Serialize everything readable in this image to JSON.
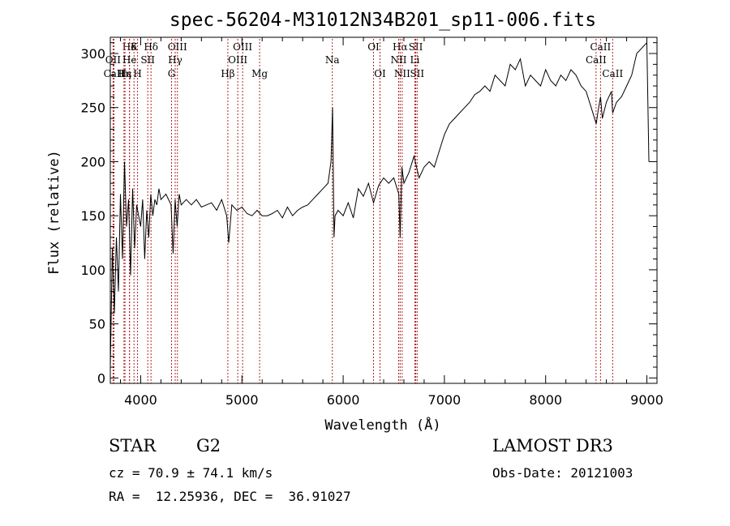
{
  "chart_data": {
    "type": "line",
    "title": "spec-56204-M31012N34B201_sp11-006.fits",
    "xlabel": "Wavelength (Å)",
    "ylabel": "Flux (relative)",
    "xlim": [
      3700,
      9100
    ],
    "ylim": [
      -5,
      315
    ],
    "xticks": [
      4000,
      5000,
      6000,
      7000,
      8000,
      9000
    ],
    "yticks": [
      0,
      50,
      100,
      150,
      200,
      250,
      300
    ],
    "grid": false,
    "spectral_lines": [
      {
        "label": "Hδ",
        "x": 3889,
        "row": 1
      },
      {
        "label": "OII",
        "x": 3727,
        "row": 2
      },
      {
        "label": "CaII",
        "x": 3736,
        "row": 3
      },
      {
        "label": "Hε",
        "x": 3845,
        "row": 3
      },
      {
        "label": "Hη",
        "x": 3835,
        "row": 3
      },
      {
        "label": "K",
        "x": 3934,
        "row": 1
      },
      {
        "label": "He",
        "x": 3890,
        "row": 2
      },
      {
        "label": "H",
        "x": 3969,
        "row": 3
      },
      {
        "label": "Hδ",
        "x": 4102,
        "row": 1
      },
      {
        "label": "SII",
        "x": 4070,
        "row": 2
      },
      {
        "label": "OIII",
        "x": 4363,
        "row": 1
      },
      {
        "label": "Hγ",
        "x": 4341,
        "row": 2
      },
      {
        "label": "G",
        "x": 4305,
        "row": 3
      },
      {
        "label": "Hβ",
        "x": 4861,
        "row": 3
      },
      {
        "label": "OIII",
        "x": 5007,
        "row": 1
      },
      {
        "label": "OIII",
        "x": 4959,
        "row": 2
      },
      {
        "label": "Mg",
        "x": 5175,
        "row": 3
      },
      {
        "label": "Na",
        "x": 5893,
        "row": 2
      },
      {
        "label": "OI",
        "x": 6300,
        "row": 1
      },
      {
        "label": "OI",
        "x": 6364,
        "row": 3
      },
      {
        "label": "Hα",
        "x": 6563,
        "row": 1
      },
      {
        "label": "NII",
        "x": 6548,
        "row": 2
      },
      {
        "label": "NII",
        "x": 6583,
        "row": 3
      },
      {
        "label": "SII",
        "x": 6717,
        "row": 1
      },
      {
        "label": "Li",
        "x": 6708,
        "row": 2
      },
      {
        "label": "SII",
        "x": 6731,
        "row": 3
      },
      {
        "label": "CaII",
        "x": 8542,
        "row": 1
      },
      {
        "label": "CaII",
        "x": 8498,
        "row": 2
      },
      {
        "label": "CaII",
        "x": 8662,
        "row": 3
      }
    ],
    "series": [
      {
        "x": [
          3700,
          3720,
          3740,
          3760,
          3780,
          3800,
          3820,
          3840,
          3860,
          3880,
          3900,
          3920,
          3940,
          3960,
          3980,
          4000,
          4020,
          4040,
          4060,
          4080,
          4100,
          4120,
          4140,
          4160,
          4180,
          4200,
          4250,
          4300,
          4320,
          4340,
          4360,
          4380,
          4400,
          4450,
          4500,
          4550,
          4600,
          4650,
          4700,
          4750,
          4800,
          4850,
          4870,
          4900,
          4950,
          5000,
          5050,
          5100,
          5150,
          5200,
          5250,
          5300,
          5350,
          5400,
          5450,
          5500,
          5550,
          5600,
          5650,
          5700,
          5750,
          5800,
          5850,
          5880,
          5895,
          5910,
          5920,
          5950,
          6000,
          6050,
          6100,
          6150,
          6200,
          6250,
          6300,
          6350,
          6400,
          6450,
          6500,
          6550,
          6563,
          6580,
          6600,
          6650,
          6700,
          6750,
          6800,
          6850,
          6900,
          6950,
          7000,
          7050,
          7100,
          7150,
          7200,
          7250,
          7300,
          7350,
          7400,
          7450,
          7500,
          7550,
          7600,
          7650,
          7700,
          7750,
          7800,
          7850,
          7900,
          7950,
          8000,
          8050,
          8100,
          8150,
          8200,
          8250,
          8300,
          8350,
          8400,
          8450,
          8500,
          8520,
          8542,
          8560,
          8600,
          8650,
          8662,
          8700,
          8750,
          8800,
          8850,
          8900,
          8950,
          9000,
          9020
        ],
        "y": [
          10,
          120,
          60,
          130,
          80,
          170,
          110,
          200,
          140,
          165,
          95,
          175,
          120,
          160,
          150,
          140,
          165,
          110,
          155,
          130,
          170,
          150,
          165,
          160,
          175,
          165,
          170,
          160,
          115,
          165,
          140,
          170,
          160,
          165,
          160,
          165,
          158,
          160,
          162,
          155,
          165,
          150,
          125,
          160,
          155,
          158,
          152,
          150,
          155,
          150,
          150,
          152,
          155,
          148,
          158,
          150,
          155,
          158,
          160,
          165,
          170,
          175,
          180,
          200,
          250,
          130,
          150,
          155,
          150,
          162,
          148,
          175,
          168,
          180,
          162,
          178,
          185,
          180,
          185,
          170,
          130,
          195,
          180,
          190,
          205,
          185,
          195,
          200,
          195,
          210,
          225,
          235,
          240,
          245,
          250,
          255,
          262,
          265,
          270,
          265,
          280,
          275,
          270,
          290,
          285,
          295,
          270,
          280,
          275,
          270,
          285,
          275,
          270,
          280,
          275,
          285,
          280,
          270,
          265,
          250,
          235,
          248,
          260,
          240,
          255,
          265,
          245,
          255,
          260,
          270,
          280,
          300,
          305,
          310,
          200
        ]
      }
    ]
  },
  "info": {
    "object_class": "STAR",
    "subclass": "G2",
    "survey": "LAMOST DR3",
    "cz": "cz = 70.9 ± 74.1 km/s",
    "obs_date": "Obs-Date: 20121003",
    "radec": "RA =  12.25936, DEC =  36.91027"
  }
}
